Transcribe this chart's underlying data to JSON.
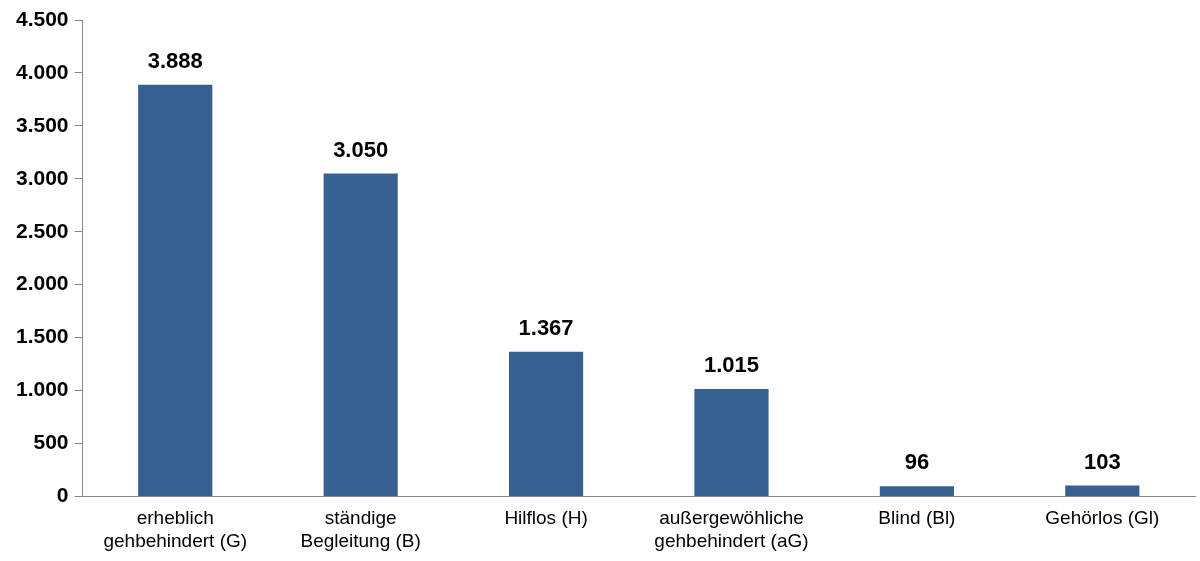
{
  "chart_data": {
    "type": "bar",
    "categories": [
      "erheblich gehbehindert (G)",
      "ständige Begleitung (B)",
      "Hilflos (H)",
      "außergewöhliche gehbehindert (aG)",
      "Blind (Bl)",
      "Gehörlos (Gl)"
    ],
    "values": [
      3888,
      3050,
      1367,
      1015,
      96,
      103
    ],
    "value_labels": [
      "3.888",
      "3.050",
      "1.367",
      "1.015",
      "96",
      "103"
    ],
    "color": "#366092",
    "ylim": [
      0,
      4500
    ],
    "yticks": [
      {
        "value": 0,
        "label": "0"
      },
      {
        "value": 500,
        "label": "500"
      },
      {
        "value": 1000,
        "label": "1.000"
      },
      {
        "value": 1500,
        "label": "1.500"
      },
      {
        "value": 2000,
        "label": "2.000"
      },
      {
        "value": 2500,
        "label": "2.500"
      },
      {
        "value": 3000,
        "label": "3.000"
      },
      {
        "value": 3500,
        "label": "3.500"
      },
      {
        "value": 4000,
        "label": "4.000"
      },
      {
        "value": 4500,
        "label": "4.500"
      }
    ],
    "grid": false,
    "legend": false
  }
}
